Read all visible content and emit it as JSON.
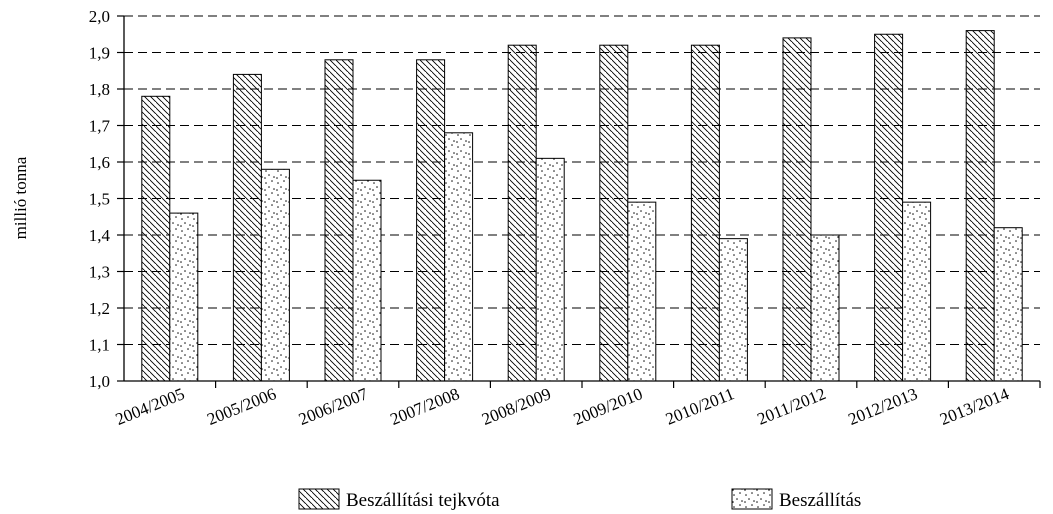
{
  "chart_data": {
    "type": "bar",
    "ylabel": "millió tonna",
    "ylim": [
      1.0,
      2.0
    ],
    "y_ticks": [
      "1,0",
      "1,1",
      "1,2",
      "1,3",
      "1,4",
      "1,5",
      "1,6",
      "1,7",
      "1,8",
      "1,9",
      "2,0"
    ],
    "grid": true,
    "legend_position": "bottom",
    "categories": [
      "2004/2005",
      "2005/2006",
      "2006/2007",
      "2007/2008",
      "2008/2009",
      "2009/2010",
      "2010/2011",
      "2011/2012",
      "2012/2013",
      "2013/2014"
    ],
    "series": [
      {
        "name": "Beszállítási tejkvóta",
        "pattern": "diagonal-hatch",
        "values": [
          1.78,
          1.84,
          1.88,
          1.88,
          1.92,
          1.92,
          1.92,
          1.94,
          1.95,
          1.96
        ]
      },
      {
        "name": "Beszállítás",
        "pattern": "dotted",
        "values": [
          1.46,
          1.58,
          1.55,
          1.68,
          1.61,
          1.49,
          1.39,
          1.4,
          1.49,
          1.42
        ]
      }
    ],
    "colors": {
      "stroke": "#000000",
      "background": "#ffffff"
    }
  }
}
